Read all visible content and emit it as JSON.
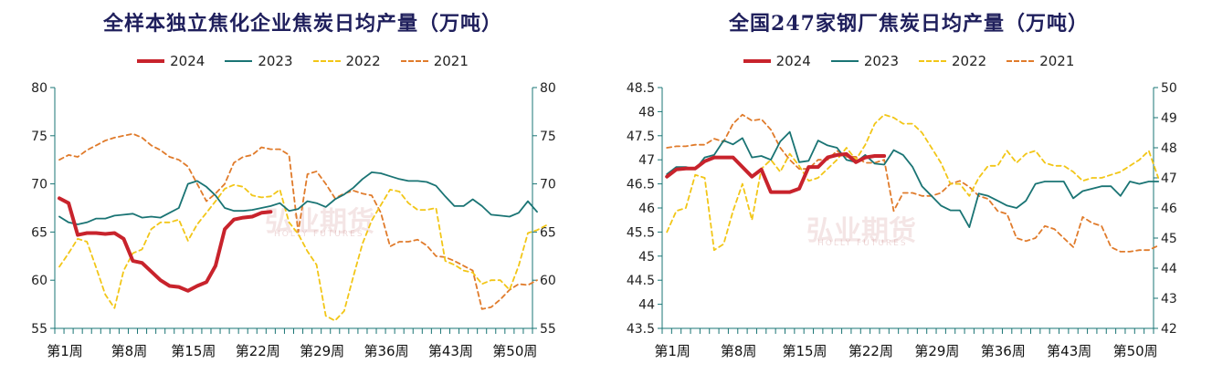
{
  "chart_data": [
    {
      "type": "line",
      "title": "全样本独立焦化企业焦炭日均产量（万吨）",
      "xlabel": "",
      "ylabel": "",
      "ylim": [
        55,
        80
      ],
      "yticks": [
        "55",
        "60",
        "65",
        "70",
        "75",
        "80"
      ],
      "right_yticks": [
        "55",
        "60",
        "65",
        "70",
        "75",
        "80"
      ],
      "xticks": [
        "第1周",
        "第8周",
        "第15周",
        "第22周",
        "第29周",
        "第36周",
        "第43周",
        "第50周"
      ],
      "xtick_weeks": [
        1,
        8,
        15,
        22,
        29,
        36,
        43,
        50
      ],
      "weeks_total": 52,
      "legend_position": "top",
      "series": [
        {
          "name": "2024",
          "color": "#c8232c",
          "style": "solid",
          "width": 4,
          "values": [
            68.5,
            68.0,
            64.7,
            64.9,
            64.9,
            64.8,
            64.9,
            64.3,
            62.0,
            61.8,
            60.9,
            60.0,
            59.4,
            59.3,
            58.9,
            59.4,
            59.8,
            61.5,
            65.3,
            66.3,
            66.5,
            66.6,
            67.0,
            67.1
          ]
        },
        {
          "name": "2023",
          "color": "#1a7474",
          "style": "solid",
          "width": 1.8,
          "values": [
            66.6,
            66.0,
            65.8,
            66.0,
            66.4,
            66.4,
            66.7,
            66.8,
            66.9,
            66.5,
            66.6,
            66.5,
            67.0,
            67.5,
            70.0,
            70.3,
            69.7,
            68.8,
            67.5,
            67.2,
            67.2,
            67.3,
            67.5,
            67.7,
            68.0,
            67.2,
            67.4,
            68.2,
            68.0,
            67.6,
            68.4,
            68.9,
            69.6,
            70.5,
            71.2,
            71.1,
            70.8,
            70.5,
            70.3,
            70.3,
            70.2,
            69.8,
            68.7,
            67.7,
            67.7,
            68.4,
            67.7,
            66.8,
            66.7,
            66.6,
            67.0,
            68.2,
            67.1
          ]
        },
        {
          "name": "2022",
          "color": "#f2c617",
          "style": "dashed",
          "width": 1.8,
          "values": [
            61.4,
            62.8,
            64.3,
            64.0,
            61.3,
            58.5,
            57.1,
            61.0,
            62.8,
            63.2,
            65.3,
            66.0,
            66.0,
            66.3,
            64.1,
            65.8,
            67.0,
            68.2,
            69.5,
            69.9,
            69.7,
            68.8,
            68.6,
            68.7,
            69.4,
            66.0,
            64.8,
            63.0,
            61.6,
            56.3,
            55.8,
            56.8,
            60.4,
            63.8,
            66.2,
            67.8,
            69.4,
            69.2,
            68.0,
            67.3,
            67.3,
            67.5,
            62.0,
            61.6,
            61.0,
            60.8,
            59.6,
            60.0,
            60.0,
            59.0,
            61.5,
            64.9,
            65.2,
            65.7
          ]
        },
        {
          "name": "2021",
          "color": "#e07b2b",
          "style": "dashed",
          "width": 1.8,
          "values": [
            72.5,
            73.0,
            72.8,
            73.5,
            74.0,
            74.5,
            74.8,
            75.0,
            75.2,
            74.8,
            74.0,
            73.5,
            72.8,
            72.5,
            71.8,
            70.0,
            68.2,
            69.0,
            70.0,
            72.2,
            72.8,
            73.0,
            73.8,
            73.6,
            73.6,
            73.0,
            65.0,
            71.0,
            71.3,
            70.0,
            68.5,
            69.0,
            69.3,
            69.0,
            68.8,
            67.0,
            63.5,
            64.0,
            64.0,
            64.2,
            63.6,
            62.5,
            62.4,
            62.0,
            61.5,
            61.0,
            57.0,
            57.2,
            58.0,
            59.0,
            59.6,
            59.5,
            60.0
          ]
        }
      ]
    },
    {
      "type": "line",
      "title": "全国247家钢厂焦炭日均产量（万吨）",
      "xlabel": "",
      "ylabel": "",
      "ylim": [
        43.5,
        48.5
      ],
      "right_ylim": [
        42,
        50
      ],
      "yticks": [
        "43.5",
        "44",
        "44.5",
        "45",
        "45.5",
        "46",
        "46.5",
        "47",
        "47.5",
        "48",
        "48.5"
      ],
      "right_yticks": [
        "42",
        "43",
        "44",
        "45",
        "46",
        "47",
        "48",
        "49",
        "50"
      ],
      "xticks": [
        "第1周",
        "第8周",
        "第15周",
        "第22周",
        "第29周",
        "第36周",
        "第43周",
        "第50周"
      ],
      "xtick_weeks": [
        1,
        8,
        15,
        22,
        29,
        36,
        43,
        50
      ],
      "weeks_total": 52,
      "legend_position": "top",
      "series": [
        {
          "name": "2024",
          "color": "#c8232c",
          "style": "solid",
          "width": 4,
          "axis": "left",
          "values": [
            46.65,
            46.8,
            46.82,
            46.82,
            46.97,
            47.05,
            47.05,
            47.05,
            46.85,
            46.65,
            46.8,
            46.33,
            46.33,
            46.33,
            46.4,
            46.85,
            46.85,
            47.05,
            47.1,
            47.12,
            46.95,
            47.05,
            47.08,
            47.08
          ]
        },
        {
          "name": "2023",
          "color": "#1a7474",
          "style": "solid",
          "width": 1.8,
          "axis": "left",
          "values": [
            46.7,
            46.85,
            46.85,
            46.8,
            47.05,
            47.1,
            47.4,
            47.32,
            47.45,
            47.05,
            47.08,
            47.0,
            47.38,
            47.58,
            46.95,
            46.98,
            47.4,
            47.3,
            47.25,
            47.0,
            46.95,
            47.1,
            46.92,
            46.9,
            47.2,
            47.1,
            46.85,
            46.45,
            46.25,
            46.05,
            45.95,
            45.95,
            45.6,
            46.3,
            46.25,
            46.15,
            46.05,
            46.0,
            46.15,
            46.5,
            46.55,
            46.55,
            46.55,
            46.2,
            46.35,
            46.4,
            46.45,
            46.45,
            46.25,
            46.55,
            46.5,
            46.55,
            46.55
          ]
        },
        {
          "name": "2022",
          "color": "#f2c617",
          "style": "dashed",
          "width": 1.8,
          "axis": "right",
          "values": [
            45.2,
            45.9,
            46.0,
            47.1,
            47.0,
            44.6,
            44.8,
            45.9,
            46.8,
            45.6,
            47.3,
            47.6,
            47.2,
            47.8,
            47.4,
            46.9,
            47.0,
            47.3,
            47.6,
            48.0,
            47.6,
            48.1,
            48.8,
            49.1,
            49.0,
            48.8,
            48.8,
            48.5,
            48.0,
            47.5,
            46.8,
            46.8,
            46.4,
            47.0,
            47.4,
            47.4,
            47.9,
            47.5,
            47.8,
            47.9,
            47.5,
            47.4,
            47.4,
            47.2,
            46.9,
            47.0,
            47.0,
            47.1,
            47.2,
            47.4,
            47.6,
            47.9,
            47.0
          ]
        },
        {
          "name": "2021",
          "color": "#e07b2b",
          "style": "dashed",
          "width": 1.8,
          "axis": "right",
          "values": [
            48.0,
            48.05,
            48.05,
            48.1,
            48.1,
            48.3,
            48.2,
            48.8,
            49.1,
            48.9,
            48.95,
            48.6,
            48.0,
            47.6,
            47.3,
            47.3,
            47.6,
            47.6,
            47.9,
            47.7,
            47.7,
            47.5,
            47.5,
            47.6,
            45.9,
            46.5,
            46.5,
            46.4,
            46.4,
            46.5,
            46.8,
            46.9,
            46.7,
            46.4,
            46.3,
            45.9,
            45.8,
            45.0,
            44.9,
            45.0,
            45.4,
            45.3,
            45.0,
            44.7,
            45.7,
            45.5,
            45.4,
            44.7,
            44.55,
            44.55,
            44.6,
            44.6,
            44.75
          ]
        }
      ]
    }
  ],
  "watermark": {
    "text": "弘业期货",
    "sub": "HOLLY FUTURES"
  }
}
